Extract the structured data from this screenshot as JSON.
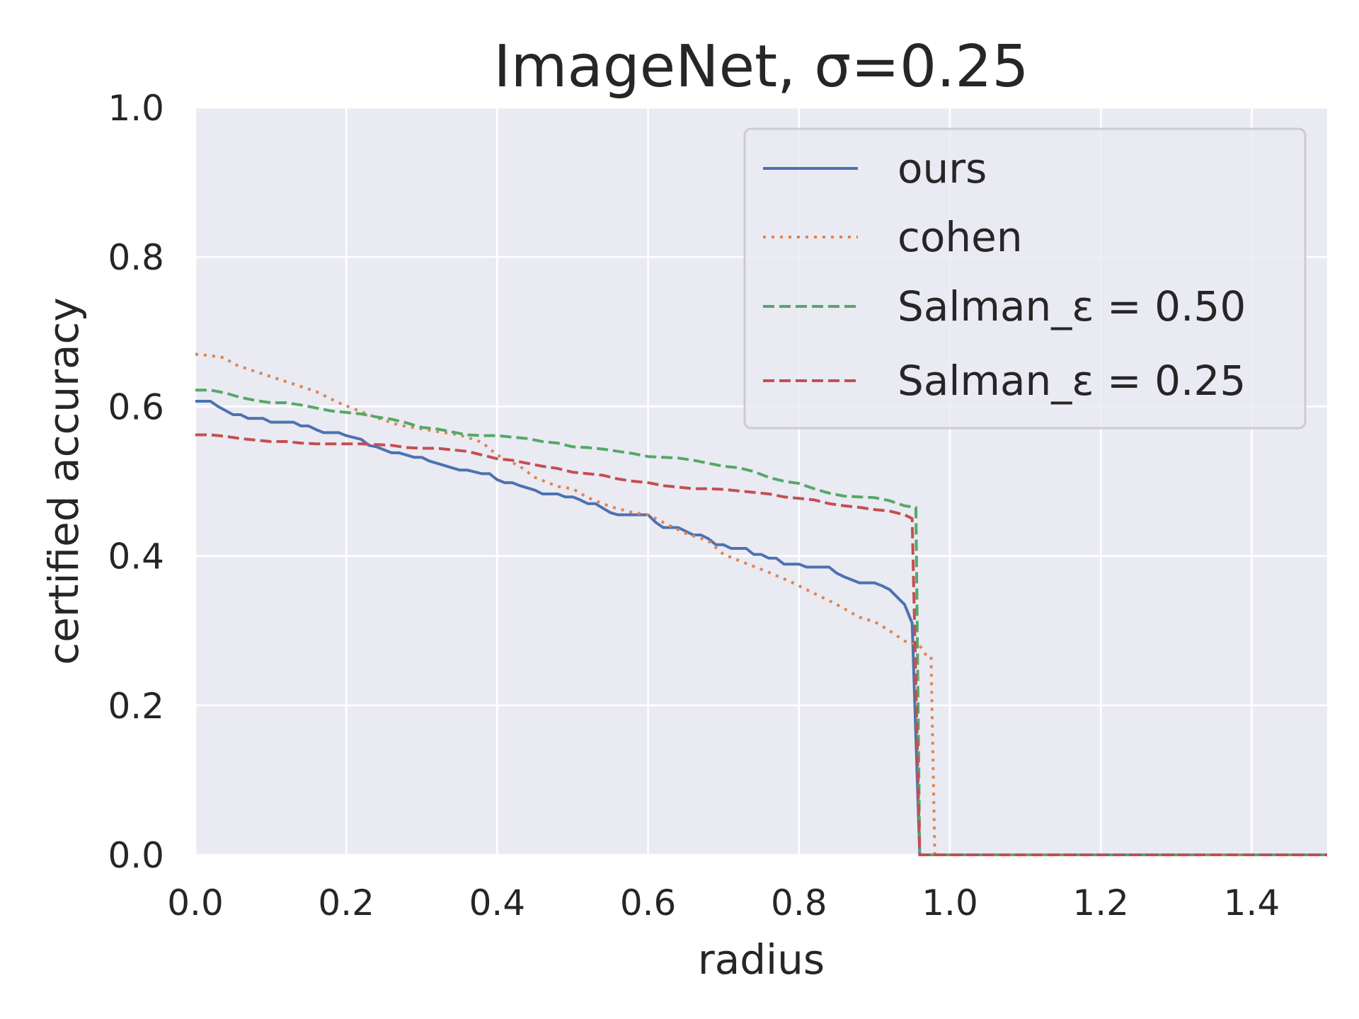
{
  "chart_data": {
    "type": "line",
    "title": "ImageNet, σ=0.25",
    "xlabel": "radius",
    "ylabel": "certified accuracy",
    "xlim": [
      0.0,
      1.5
    ],
    "ylim": [
      0.0,
      1.0
    ],
    "xticks": [
      "0.0",
      "0.2",
      "0.4",
      "0.6",
      "0.8",
      "1.0",
      "1.2",
      "1.4"
    ],
    "yticks": [
      "0.0",
      "0.2",
      "0.4",
      "0.6",
      "0.8",
      "1.0"
    ],
    "grid": true,
    "legend_position": "top-right",
    "background": "#eaeaf2",
    "series": [
      {
        "name": "ours",
        "color": "#4c72b0",
        "style": "solid",
        "x": [
          0.0,
          0.02,
          0.03,
          0.05,
          0.06,
          0.07,
          0.09,
          0.1,
          0.12,
          0.13,
          0.14,
          0.15,
          0.16,
          0.17,
          0.19,
          0.2,
          0.22,
          0.23,
          0.24,
          0.26,
          0.27,
          0.29,
          0.3,
          0.31,
          0.33,
          0.35,
          0.36,
          0.38,
          0.39,
          0.4,
          0.41,
          0.42,
          0.43,
          0.45,
          0.46,
          0.48,
          0.49,
          0.5,
          0.51,
          0.52,
          0.53,
          0.55,
          0.56,
          0.57,
          0.58,
          0.6,
          0.61,
          0.62,
          0.64,
          0.65,
          0.66,
          0.67,
          0.68,
          0.69,
          0.7,
          0.71,
          0.72,
          0.73,
          0.74,
          0.75,
          0.76,
          0.77,
          0.78,
          0.8,
          0.81,
          0.82,
          0.84,
          0.85,
          0.86,
          0.87,
          0.88,
          0.9,
          0.91,
          0.92,
          0.93,
          0.94,
          0.95,
          0.96,
          0.963,
          1.5
        ],
        "y": [
          0.607,
          0.607,
          0.6,
          0.589,
          0.589,
          0.584,
          0.584,
          0.579,
          0.579,
          0.579,
          0.574,
          0.574,
          0.569,
          0.565,
          0.565,
          0.561,
          0.556,
          0.548,
          0.546,
          0.538,
          0.538,
          0.532,
          0.532,
          0.527,
          0.521,
          0.515,
          0.515,
          0.51,
          0.51,
          0.502,
          0.498,
          0.498,
          0.494,
          0.488,
          0.483,
          0.483,
          0.479,
          0.479,
          0.475,
          0.47,
          0.47,
          0.458,
          0.455,
          0.455,
          0.455,
          0.455,
          0.445,
          0.438,
          0.438,
          0.433,
          0.428,
          0.428,
          0.423,
          0.415,
          0.415,
          0.41,
          0.41,
          0.41,
          0.402,
          0.402,
          0.397,
          0.397,
          0.389,
          0.389,
          0.385,
          0.385,
          0.385,
          0.377,
          0.372,
          0.368,
          0.364,
          0.364,
          0.36,
          0.355,
          0.345,
          0.335,
          0.31,
          0.0,
          0.0,
          0.0
        ]
      },
      {
        "name": "cohen",
        "color": "#dd8452",
        "style": "dotted",
        "x": [
          0.0,
          0.02,
          0.04,
          0.05,
          0.07,
          0.1,
          0.13,
          0.16,
          0.19,
          0.21,
          0.24,
          0.27,
          0.3,
          0.33,
          0.35,
          0.38,
          0.4,
          0.43,
          0.45,
          0.48,
          0.5,
          0.52,
          0.55,
          0.58,
          0.6,
          0.63,
          0.65,
          0.68,
          0.7,
          0.73,
          0.76,
          0.79,
          0.82,
          0.85,
          0.88,
          0.9,
          0.92,
          0.94,
          0.96,
          0.97,
          0.975,
          0.98,
          1.5
        ],
        "y": [
          0.67,
          0.668,
          0.665,
          0.657,
          0.65,
          0.64,
          0.63,
          0.62,
          0.605,
          0.597,
          0.585,
          0.575,
          0.57,
          0.565,
          0.562,
          0.552,
          0.535,
          0.52,
          0.505,
          0.493,
          0.49,
          0.478,
          0.466,
          0.458,
          0.455,
          0.44,
          0.43,
          0.42,
          0.402,
          0.39,
          0.378,
          0.365,
          0.35,
          0.335,
          0.318,
          0.312,
          0.3,
          0.286,
          0.28,
          0.265,
          0.265,
          0.0,
          0.0
        ]
      },
      {
        "name": "Salman_ε = 0.50",
        "color": "#55a868",
        "style": "dashed",
        "x": [
          0.0,
          0.02,
          0.04,
          0.06,
          0.08,
          0.1,
          0.12,
          0.14,
          0.16,
          0.18,
          0.2,
          0.22,
          0.24,
          0.26,
          0.28,
          0.3,
          0.32,
          0.34,
          0.36,
          0.38,
          0.4,
          0.42,
          0.44,
          0.46,
          0.48,
          0.5,
          0.52,
          0.54,
          0.56,
          0.58,
          0.6,
          0.62,
          0.64,
          0.66,
          0.68,
          0.7,
          0.72,
          0.74,
          0.76,
          0.78,
          0.8,
          0.82,
          0.84,
          0.86,
          0.88,
          0.9,
          0.92,
          0.94,
          0.955,
          0.96,
          1.5
        ],
        "y": [
          0.622,
          0.622,
          0.618,
          0.612,
          0.608,
          0.605,
          0.605,
          0.602,
          0.598,
          0.594,
          0.592,
          0.59,
          0.586,
          0.583,
          0.578,
          0.572,
          0.57,
          0.566,
          0.562,
          0.561,
          0.561,
          0.559,
          0.557,
          0.553,
          0.551,
          0.546,
          0.545,
          0.543,
          0.54,
          0.537,
          0.533,
          0.532,
          0.531,
          0.528,
          0.524,
          0.52,
          0.518,
          0.513,
          0.505,
          0.5,
          0.497,
          0.49,
          0.484,
          0.48,
          0.479,
          0.478,
          0.474,
          0.467,
          0.465,
          0.0,
          0.0
        ]
      },
      {
        "name": "Salman_ε = 0.25",
        "color": "#c44e52",
        "style": "dashed",
        "x": [
          0.0,
          0.02,
          0.04,
          0.06,
          0.08,
          0.1,
          0.12,
          0.14,
          0.16,
          0.18,
          0.2,
          0.22,
          0.24,
          0.26,
          0.28,
          0.3,
          0.32,
          0.34,
          0.36,
          0.38,
          0.4,
          0.42,
          0.44,
          0.46,
          0.48,
          0.5,
          0.52,
          0.54,
          0.56,
          0.58,
          0.6,
          0.62,
          0.64,
          0.66,
          0.68,
          0.7,
          0.72,
          0.74,
          0.76,
          0.78,
          0.8,
          0.82,
          0.84,
          0.86,
          0.88,
          0.9,
          0.92,
          0.94,
          0.95,
          0.96,
          1.5
        ],
        "y": [
          0.562,
          0.562,
          0.56,
          0.557,
          0.555,
          0.553,
          0.553,
          0.551,
          0.55,
          0.55,
          0.55,
          0.55,
          0.549,
          0.548,
          0.545,
          0.544,
          0.544,
          0.542,
          0.54,
          0.535,
          0.53,
          0.528,
          0.524,
          0.52,
          0.517,
          0.512,
          0.51,
          0.508,
          0.503,
          0.5,
          0.498,
          0.494,
          0.492,
          0.49,
          0.49,
          0.489,
          0.487,
          0.485,
          0.483,
          0.479,
          0.477,
          0.475,
          0.47,
          0.467,
          0.465,
          0.462,
          0.46,
          0.455,
          0.45,
          0.0,
          0.0
        ]
      }
    ]
  }
}
